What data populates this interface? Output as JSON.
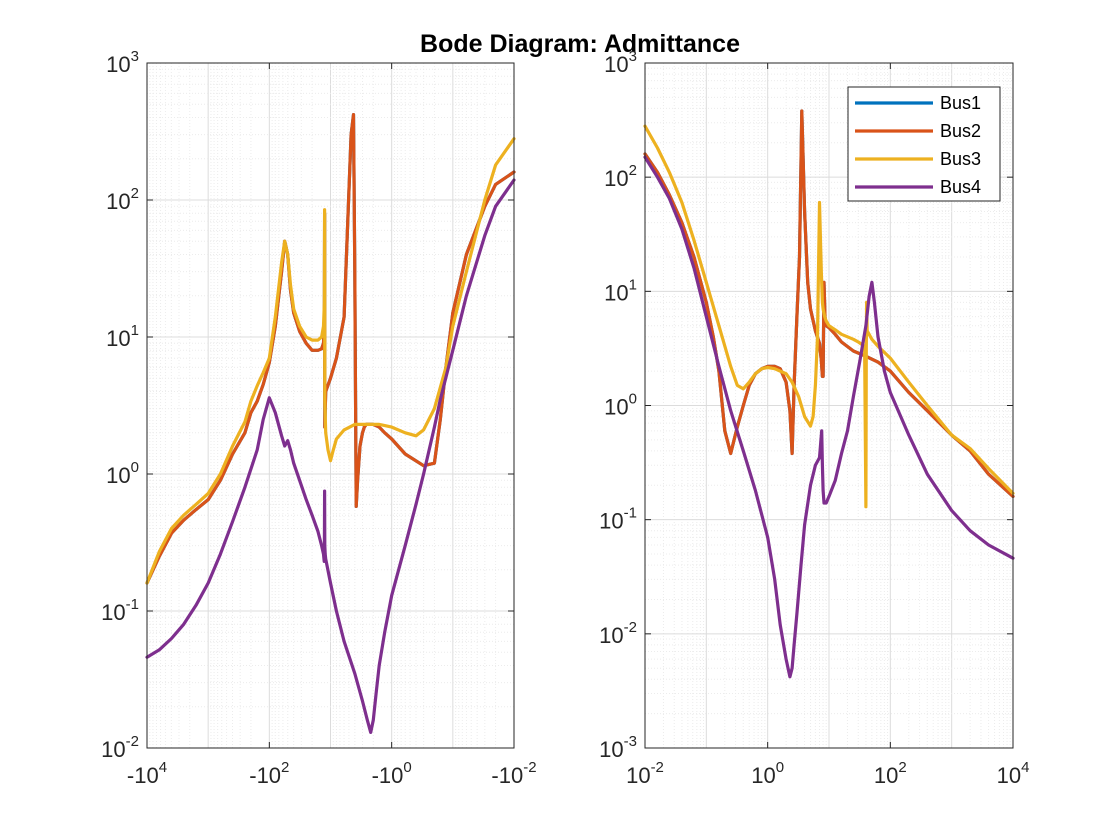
{
  "chart_data": {
    "title": "Bode Diagram: Admittance",
    "type": "line",
    "legend": {
      "placement": "top-right-of-right-axes",
      "entries": [
        "Bus1",
        "Bus2",
        "Bus3",
        "Bus4"
      ]
    },
    "colors": {
      "Bus1": "#0072BD",
      "Bus2": "#D95319",
      "Bus3": "#EDB120",
      "Bus4": "#7E2F8E"
    },
    "grid": "major-and-minor",
    "axes": [
      {
        "id": "left",
        "xscale": "symlog-negative",
        "yscale": "log",
        "xlim": [
          -10000,
          -0.01
        ],
        "ylim": [
          0.01,
          1000
        ],
        "xticks": [
          {
            "base": "-10",
            "exp": "4",
            "v": -10000
          },
          {
            "base": "-10",
            "exp": "2",
            "v": -100
          },
          {
            "base": "-10",
            "exp": "0",
            "v": -1
          },
          {
            "base": "-10",
            "exp": "-2",
            "v": -0.01
          }
        ],
        "yticks": [
          {
            "base": "10",
            "exp": "-2",
            "v": 0.01
          },
          {
            "base": "10",
            "exp": "-1",
            "v": 0.1
          },
          {
            "base": "10",
            "exp": "0",
            "v": 1
          },
          {
            "base": "10",
            "exp": "1",
            "v": 10
          },
          {
            "base": "10",
            "exp": "2",
            "v": 100
          },
          {
            "base": "10",
            "exp": "3",
            "v": 1000
          }
        ],
        "series": [
          {
            "name": "Bus1",
            "x": [
              -10000,
              -6310,
              -3980,
              -2510,
              -1580,
              -1000,
              -631,
              -398,
              -251,
              -200,
              -158,
              -126,
              -100,
              -80,
              -63,
              -56,
              -50,
              -45,
              -40,
              -32,
              -25,
              -20,
              -16,
              -14,
              -13,
              -12.6,
              -12.5,
              -12.4,
              -12,
              -10,
              -8,
              -6,
              -4.6,
              -4.2,
              -4,
              -3.9,
              -3.8,
              -3.6,
              -3.3,
              -3,
              -2.8,
              -2.6,
              -2.5,
              -2.3,
              -2,
              -1.6,
              -1.3,
              -1,
              -0.6,
              -0.3,
              -0.2,
              -0.16,
              -0.13,
              -0.1,
              -0.06,
              -0.03,
              -0.02,
              -0.01
            ],
            "y": [
              0.16,
              0.25,
              0.37,
              0.46,
              0.55,
              0.65,
              0.9,
              1.4,
              2.0,
              2.8,
              3.4,
              4.5,
              6.5,
              12,
              30,
              50,
              40,
              22,
              15,
              11,
              9,
              8,
              8,
              8.2,
              9,
              12,
              80,
              2.2,
              4,
              5,
              7,
              14,
              300,
              420,
              30,
              4,
              0.58,
              0.9,
              1.6,
              2.0,
              2.2,
              2.3,
              2.3,
              2.3,
              2.3,
              2.2,
              2.0,
              1.8,
              1.4,
              1.15,
              1.2,
              2.5,
              6,
              15,
              40,
              90,
              130,
              160
            ]
          },
          {
            "name": "Bus2",
            "x": [
              -10000,
              -6310,
              -3980,
              -2510,
              -1580,
              -1000,
              -631,
              -398,
              -251,
              -200,
              -158,
              -126,
              -100,
              -80,
              -63,
              -56,
              -50,
              -45,
              -40,
              -32,
              -25,
              -20,
              -16,
              -14,
              -13,
              -12.6,
              -12.5,
              -12.4,
              -12,
              -10,
              -8,
              -6,
              -4.6,
              -4.2,
              -4,
              -3.9,
              -3.8,
              -3.6,
              -3.3,
              -3,
              -2.8,
              -2.6,
              -2.5,
              -2.3,
              -2,
              -1.6,
              -1.3,
              -1,
              -0.6,
              -0.3,
              -0.2,
              -0.16,
              -0.13,
              -0.1,
              -0.06,
              -0.03,
              -0.02,
              -0.01
            ],
            "y": [
              0.16,
              0.25,
              0.37,
              0.46,
              0.55,
              0.65,
              0.9,
              1.4,
              2.0,
              2.8,
              3.4,
              4.5,
              6.5,
              12,
              30,
              50,
              40,
              22,
              15,
              11,
              9,
              8,
              8,
              8.2,
              9,
              12,
              80,
              2.2,
              4,
              5,
              7,
              14,
              300,
              420,
              30,
              4,
              0.58,
              0.9,
              1.6,
              2.0,
              2.2,
              2.3,
              2.3,
              2.3,
              2.3,
              2.2,
              2.0,
              1.8,
              1.4,
              1.15,
              1.2,
              2.5,
              6,
              15,
              40,
              90,
              130,
              160
            ]
          },
          {
            "name": "Bus3",
            "x": [
              -10000,
              -6310,
              -3980,
              -2510,
              -1580,
              -1000,
              -631,
              -398,
              -251,
              -200,
              -158,
              -126,
              -100,
              -80,
              -63,
              -56,
              -50,
              -45,
              -40,
              -32,
              -25,
              -20,
              -16,
              -14,
              -13,
              -12.6,
              -12.5,
              -12.4,
              -12,
              -11,
              -10,
              -9,
              -8,
              -6,
              -4,
              -2.5,
              -1.6,
              -1,
              -0.6,
              -0.4,
              -0.3,
              -0.2,
              -0.13,
              -0.1,
              -0.06,
              -0.03,
              -0.02,
              -0.01
            ],
            "y": [
              0.16,
              0.27,
              0.4,
              0.5,
              0.6,
              0.72,
              1.0,
              1.6,
              2.4,
              3.4,
              4.4,
              5.5,
              7,
              14,
              35,
              50,
              40,
              24,
              16,
              12,
              10,
              9.5,
              9.5,
              10,
              12,
              18,
              85,
              3.5,
              2,
              1.5,
              1.25,
              1.5,
              1.8,
              2.1,
              2.3,
              2.3,
              2.3,
              2.2,
              2.0,
              1.9,
              2.1,
              3.0,
              6,
              12,
              30,
              100,
              180,
              280
            ]
          },
          {
            "name": "Bus4",
            "x": [
              -10000,
              -6310,
              -3980,
              -2510,
              -1580,
              -1000,
              -631,
              -398,
              -251,
              -158,
              -126,
              -100,
              -80,
              -63,
              -56,
              -50,
              -45,
              -40,
              -32,
              -25,
              -20,
              -16,
              -14,
              -13,
              -12.7,
              -12.6,
              -12.5,
              -12.4,
              -12.2,
              -12,
              -10,
              -8,
              -6,
              -4,
              -3,
              -2.5,
              -2.2,
              -2,
              -1.8,
              -1.6,
              -1.3,
              -1,
              -0.6,
              -0.4,
              -0.3,
              -0.2,
              -0.16,
              -0.1,
              -0.06,
              -0.03,
              -0.02,
              -0.01
            ],
            "y": [
              0.046,
              0.052,
              0.063,
              0.08,
              0.11,
              0.16,
              0.26,
              0.45,
              0.8,
              1.5,
              2.5,
              3.6,
              2.8,
              1.9,
              1.6,
              1.75,
              1.5,
              1.2,
              0.9,
              0.65,
              0.5,
              0.38,
              0.3,
              0.26,
              0.23,
              0.3,
              0.75,
              0.3,
              0.26,
              0.24,
              0.16,
              0.1,
              0.06,
              0.035,
              0.022,
              0.016,
              0.013,
              0.016,
              0.025,
              0.04,
              0.07,
              0.13,
              0.3,
              0.6,
              1.0,
              2.2,
              3.5,
              8,
              20,
              55,
              90,
              140
            ]
          }
        ]
      },
      {
        "id": "right",
        "xscale": "log",
        "yscale": "log",
        "xlim": [
          0.01,
          10000
        ],
        "ylim": [
          0.001,
          1000
        ],
        "xticks": [
          {
            "base": "10",
            "exp": "-2",
            "v": 0.01
          },
          {
            "base": "10",
            "exp": "0",
            "v": 1
          },
          {
            "base": "10",
            "exp": "2",
            "v": 100
          },
          {
            "base": "10",
            "exp": "4",
            "v": 10000
          }
        ],
        "yticks": [
          {
            "base": "10",
            "exp": "-3",
            "v": 0.001
          },
          {
            "base": "10",
            "exp": "-2",
            "v": 0.01
          },
          {
            "base": "10",
            "exp": "-1",
            "v": 0.1
          },
          {
            "base": "10",
            "exp": "0",
            "v": 1
          },
          {
            "base": "10",
            "exp": "1",
            "v": 10
          },
          {
            "base": "10",
            "exp": "2",
            "v": 100
          },
          {
            "base": "10",
            "exp": "3",
            "v": 1000
          }
        ],
        "series": [
          {
            "name": "Bus1",
            "x": [
              0.01,
              0.016,
              0.025,
              0.04,
              0.063,
              0.1,
              0.13,
              0.16,
              0.2,
              0.25,
              0.32,
              0.4,
              0.5,
              0.63,
              0.8,
              1.0,
              1.3,
              1.6,
              2.0,
              2.3,
              2.5,
              2.7,
              3.0,
              3.3,
              3.6,
              4.0,
              4.5,
              5.0,
              6.0,
              7.0,
              7.5,
              7.8,
              8.0,
              8.3,
              8.6,
              9.0,
              10,
              12.6,
              16,
              25,
              40,
              63,
              100,
              200,
              400,
              1000,
              2000,
              4000,
              10000
            ],
            "y": [
              160,
              110,
              70,
              40,
              20,
              8,
              4,
              2,
              0.6,
              0.38,
              0.65,
              1.0,
              1.5,
              1.9,
              2.1,
              2.2,
              2.2,
              2.1,
              1.6,
              0.9,
              0.38,
              1.5,
              6,
              20,
              380,
              50,
              12,
              7,
              4.5,
              3.5,
              2.5,
              1.8,
              1.8,
              12,
              6,
              5,
              4.8,
              4.2,
              3.6,
              3.0,
              2.7,
              2.4,
              2.0,
              1.3,
              0.9,
              0.55,
              0.4,
              0.25,
              0.16
            ]
          },
          {
            "name": "Bus2",
            "x": [
              0.01,
              0.016,
              0.025,
              0.04,
              0.063,
              0.1,
              0.13,
              0.16,
              0.2,
              0.25,
              0.32,
              0.4,
              0.5,
              0.63,
              0.8,
              1.0,
              1.3,
              1.6,
              2.0,
              2.3,
              2.5,
              2.7,
              3.0,
              3.3,
              3.6,
              4.0,
              4.5,
              5.0,
              6.0,
              7.0,
              7.5,
              7.8,
              8.0,
              8.3,
              8.6,
              9.0,
              10,
              12.6,
              16,
              25,
              40,
              63,
              100,
              200,
              400,
              1000,
              2000,
              4000,
              10000
            ],
            "y": [
              160,
              110,
              70,
              40,
              20,
              8,
              4,
              2,
              0.6,
              0.38,
              0.65,
              1.0,
              1.5,
              1.9,
              2.1,
              2.2,
              2.2,
              2.1,
              1.6,
              0.9,
              0.38,
              1.5,
              6,
              20,
              380,
              50,
              12,
              7,
              4.5,
              3.5,
              2.5,
              1.8,
              1.8,
              12,
              6,
              5,
              4.8,
              4.2,
              3.6,
              3.0,
              2.7,
              2.4,
              2.0,
              1.3,
              0.9,
              0.55,
              0.4,
              0.25,
              0.16
            ]
          },
          {
            "name": "Bus3",
            "x": [
              0.01,
              0.016,
              0.025,
              0.04,
              0.063,
              0.1,
              0.16,
              0.25,
              0.32,
              0.4,
              0.5,
              0.63,
              0.8,
              1.0,
              1.3,
              1.6,
              2.0,
              2.5,
              3.2,
              4.0,
              5.0,
              5.5,
              6.0,
              6.5,
              7.0,
              7.5,
              7.8,
              8.0,
              8.5,
              9.0,
              10,
              12.6,
              16,
              20,
              25,
              30,
              35,
              38,
              40,
              40.5,
              41,
              42,
              50,
              63,
              100,
              200,
              400,
              1000,
              2000,
              4000,
              10000
            ],
            "y": [
              280,
              180,
              110,
              60,
              28,
              12,
              5,
              2.2,
              1.5,
              1.4,
              1.6,
              1.9,
              2.1,
              2.15,
              2.1,
              2.0,
              1.9,
              1.6,
              1.2,
              0.8,
              0.66,
              0.8,
              1.5,
              4,
              60,
              15,
              8,
              7,
              6,
              5.5,
              5,
              4.6,
              4.2,
              4.0,
              3.8,
              3.6,
              3.4,
              3.3,
              0.13,
              3.2,
              8,
              4.5,
              3.8,
              3.3,
              2.6,
              1.6,
              1.0,
              0.55,
              0.42,
              0.28,
              0.17
            ]
          },
          {
            "name": "Bus4",
            "x": [
              0.01,
              0.016,
              0.025,
              0.04,
              0.063,
              0.1,
              0.16,
              0.25,
              0.4,
              0.63,
              1.0,
              1.3,
              1.6,
              2.0,
              2.3,
              2.5,
              2.7,
              3.0,
              3.5,
              4.0,
              5.0,
              6.0,
              7.0,
              7.6,
              7.8,
              8.0,
              8.3,
              9.0,
              10,
              12.6,
              16,
              20,
              25,
              32,
              40,
              45,
              50,
              55,
              63,
              80,
              100,
              200,
              400,
              1000,
              2000,
              4000,
              10000
            ],
            "y": [
              150,
              100,
              65,
              35,
              16,
              6,
              2.2,
              0.9,
              0.4,
              0.18,
              0.07,
              0.03,
              0.012,
              0.006,
              0.0042,
              0.005,
              0.008,
              0.015,
              0.04,
              0.09,
              0.2,
              0.3,
              0.35,
              0.6,
              0.3,
              0.18,
              0.14,
              0.14,
              0.16,
              0.22,
              0.38,
              0.6,
              1.2,
              2.5,
              5,
              9,
              12,
              8,
              4,
              2,
              1.3,
              0.55,
              0.25,
              0.12,
              0.08,
              0.06,
              0.046
            ]
          }
        ]
      }
    ]
  }
}
